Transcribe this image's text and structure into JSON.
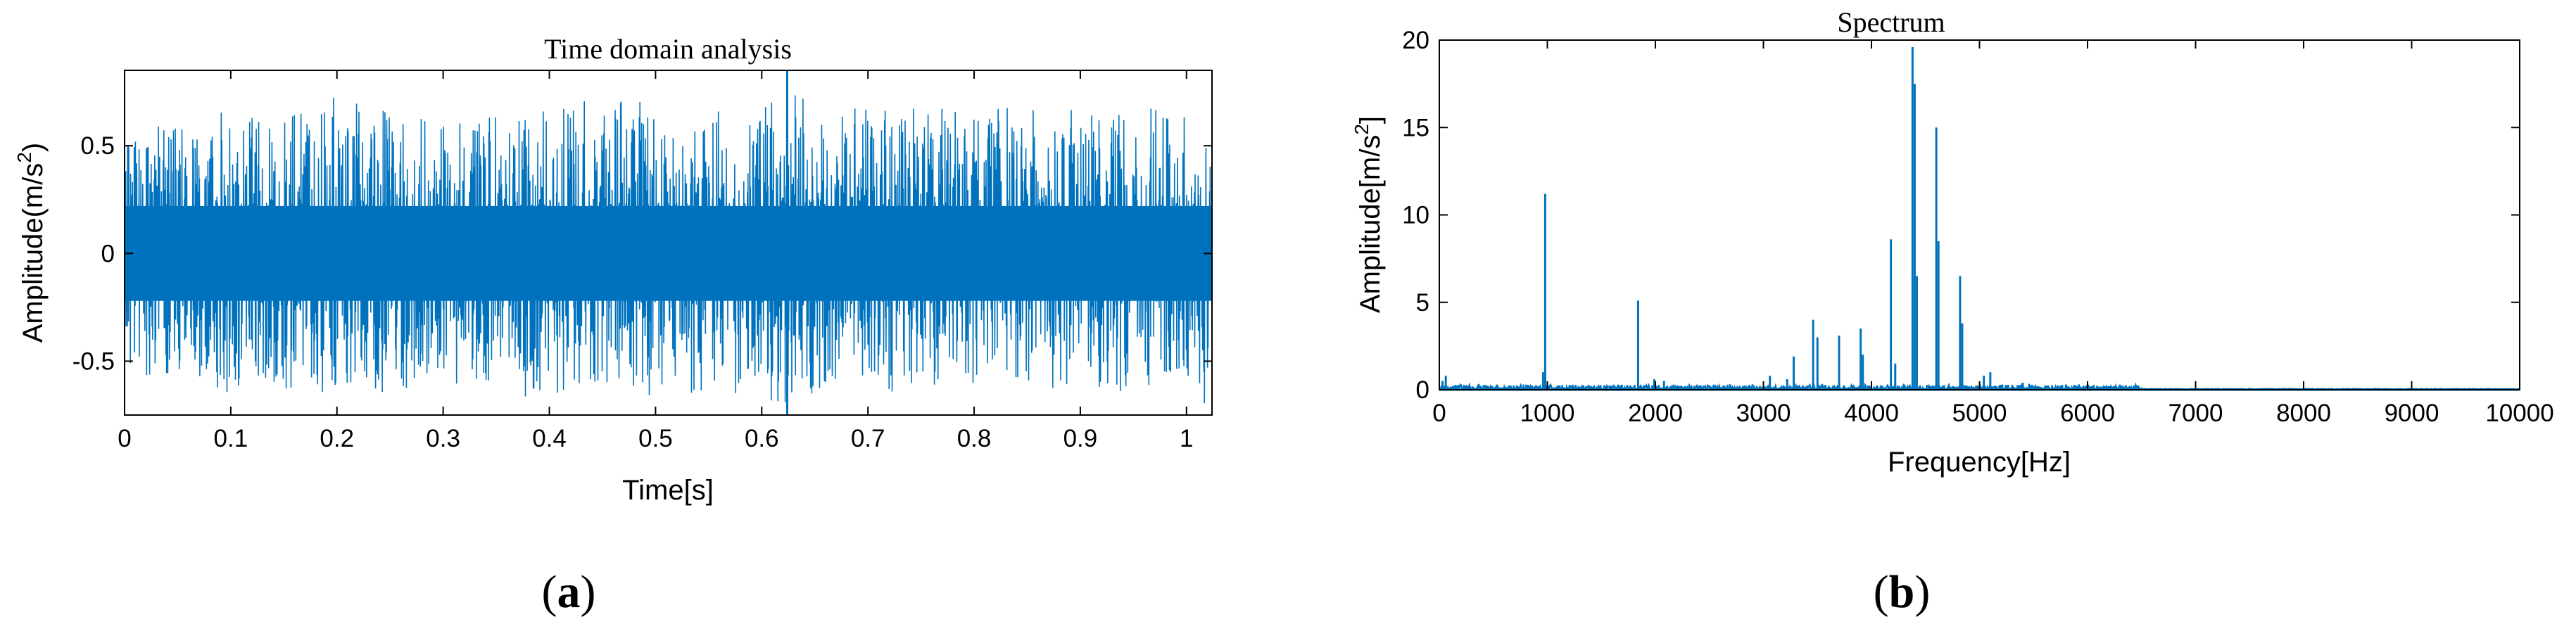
{
  "chart_data": [
    {
      "type": "line",
      "panel_label": "a",
      "title": "Time domain analysis",
      "xlabel": "Time[s]",
      "ylabel": "Amplitude(m/s",
      "ylabel_sup": "2",
      "ylabel_suffix": ")",
      "xlim": [
        0,
        1.024
      ],
      "ylim": [
        -0.75,
        0.85
      ],
      "xticks": [
        0,
        0.1,
        0.2,
        0.3,
        0.4,
        0.5,
        0.6,
        0.7,
        0.8,
        0.9,
        1
      ],
      "xtick_labels": [
        "0",
        "0.1",
        "0.2",
        "0.3",
        "0.4",
        "0.5",
        "0.6",
        "0.7",
        "0.8",
        "0.9",
        "1"
      ],
      "yticks": [
        -0.5,
        0,
        0.5
      ],
      "ytick_labels": [
        "-0.5",
        "0",
        "0.5"
      ],
      "color": "#0072BD",
      "series": [
        {
          "description_values": "dense vibration signal",
          "x": [
            0,
            0.05,
            0.1,
            0.15,
            0.2,
            0.25,
            0.3,
            0.35,
            0.4,
            0.45,
            0.5,
            0.55,
            0.6,
            0.624,
            0.65,
            0.7,
            0.75,
            0.8,
            0.85,
            0.9,
            0.95,
            1.0,
            1.024
          ],
          "envelope_max": [
            0.55,
            0.62,
            0.68,
            0.64,
            0.75,
            0.66,
            0.62,
            0.64,
            0.7,
            0.72,
            0.72,
            0.66,
            0.68,
            0.85,
            0.7,
            0.67,
            0.68,
            0.7,
            0.66,
            0.72,
            0.68,
            0.66,
            0.45
          ],
          "envelope_min": [
            -0.55,
            -0.6,
            -0.65,
            -0.68,
            -0.63,
            -0.65,
            -0.6,
            -0.7,
            -0.68,
            -0.65,
            -0.66,
            -0.64,
            -0.66,
            -0.75,
            -0.65,
            -0.66,
            -0.64,
            -0.65,
            -0.6,
            -0.66,
            -0.64,
            -0.62,
            -0.74
          ]
        }
      ]
    },
    {
      "type": "line",
      "panel_label": "b",
      "title": "Spectrum",
      "xlabel": "Frequency[Hz]",
      "ylabel": "Amplitude[m/s",
      "ylabel_sup": "2",
      "ylabel_suffix": "]",
      "xlim": [
        0,
        10000
      ],
      "ylim": [
        0,
        20
      ],
      "xticks": [
        0,
        1000,
        2000,
        3000,
        4000,
        5000,
        6000,
        7000,
        8000,
        9000,
        10000
      ],
      "xtick_labels": [
        "0",
        "1000",
        "2000",
        "3000",
        "4000",
        "5000",
        "6000",
        "7000",
        "8000",
        "9000",
        "10000"
      ],
      "yticks": [
        0,
        5,
        10,
        15,
        20
      ],
      "ytick_labels": [
        "0",
        "5",
        "10",
        "15",
        "20"
      ],
      "color": "#0072BD",
      "series": [
        {
          "peaks_x": [
            30,
            60,
            960,
            980,
            1840,
            1990,
            2080,
            2900,
            3060,
            3220,
            3280,
            3460,
            3500,
            3700,
            3900,
            3920,
            4180,
            4220,
            4380,
            4400,
            4420,
            4600,
            4620,
            4820,
            4840,
            5040,
            5100,
            5400,
            5800,
            6000,
            6200
          ],
          "peaks_y": [
            0.5,
            0.8,
            1.0,
            11.2,
            5.1,
            0.6,
            0.5,
            0.3,
            0.8,
            0.6,
            1.9,
            4.0,
            3.0,
            3.1,
            3.5,
            2.0,
            8.6,
            1.5,
            19.6,
            17.5,
            6.5,
            15.0,
            8.5,
            6.5,
            3.8,
            0.8,
            1.0,
            0.4,
            0.3,
            0.3,
            0.2
          ]
        }
      ]
    }
  ]
}
